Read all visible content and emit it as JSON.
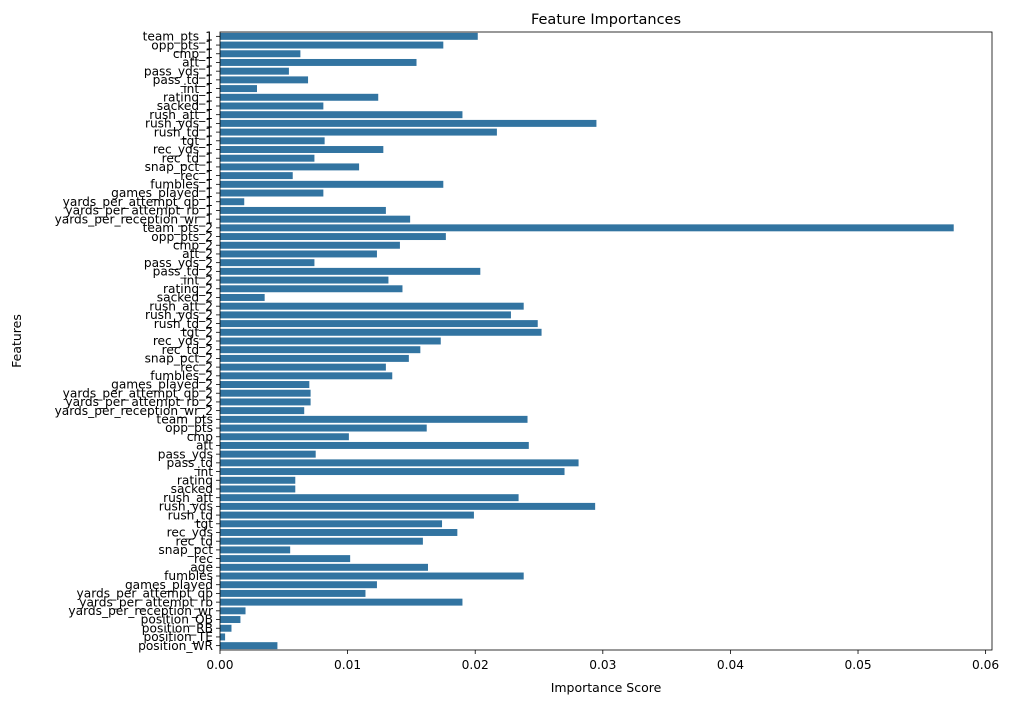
{
  "chart_data": {
    "type": "bar",
    "orientation": "horizontal",
    "title": "Feature Importances",
    "xlabel": "Importance Score",
    "ylabel": "Features",
    "xlim": [
      0,
      0.0605
    ],
    "xticks": [
      0,
      0.01,
      0.02,
      0.03,
      0.04,
      0.05,
      0.06
    ],
    "xtick_labels": [
      "0.00",
      "0.01",
      "0.02",
      "0.03",
      "0.04",
      "0.05",
      "0.06"
    ],
    "grid": false,
    "bar_color": "#3274a1",
    "categories": [
      "team_pts_1",
      "opp_pts_1",
      "cmp_1",
      "att_1",
      "pass_yds_1",
      "pass_td_1",
      "int_1",
      "rating_1",
      "sacked_1",
      "rush_att_1",
      "rush_yds_1",
      "rush_td_1",
      "tgt_1",
      "rec_yds_1",
      "rec_td_1",
      "snap_pct_1",
      "rec_1",
      "fumbles_1",
      "games_played_1",
      "yards_per_attempt_qb_1",
      "yards_per_attempt_rb_1",
      "yards_per_reception_wr_1",
      "team_pts_2",
      "opp_pts_2",
      "cmp_2",
      "att_2",
      "pass_yds_2",
      "pass_td_2",
      "int_2",
      "rating_2",
      "sacked_2",
      "rush_att_2",
      "rush_yds_2",
      "rush_td_2",
      "tgt_2",
      "rec_yds_2",
      "rec_td_2",
      "snap_pct_2",
      "rec_2",
      "fumbles_2",
      "games_played_2",
      "yards_per_attempt_qb_2",
      "yards_per_attempt_rb_2",
      "yards_per_reception_wr_2",
      "team_pts",
      "opp_pts",
      "cmp",
      "att",
      "pass_yds",
      "pass_td",
      "int",
      "rating",
      "sacked",
      "rush_att",
      "rush_yds",
      "rush_td",
      "tgt",
      "rec_yds",
      "rec_td",
      "snap_pct",
      "rec",
      "age",
      "fumbles",
      "games_played",
      "yards_per_attempt_qb",
      "yards_per_attempt_rb",
      "yards_per_reception_wr",
      "position_QB",
      "position_RB",
      "position_TE",
      "position_WR"
    ],
    "values": [
      0.0202,
      0.0175,
      0.0063,
      0.0154,
      0.0054,
      0.0069,
      0.0029,
      0.0124,
      0.0081,
      0.019,
      0.0295,
      0.0217,
      0.0082,
      0.0128,
      0.0074,
      0.0109,
      0.0057,
      0.0175,
      0.0081,
      0.0019,
      0.013,
      0.0149,
      0.0575,
      0.0177,
      0.0141,
      0.0123,
      0.0074,
      0.0204,
      0.0132,
      0.0143,
      0.0035,
      0.0238,
      0.0228,
      0.0249,
      0.0252,
      0.0173,
      0.0157,
      0.0148,
      0.013,
      0.0135,
      0.007,
      0.0071,
      0.0071,
      0.0066,
      0.0241,
      0.0162,
      0.0101,
      0.0242,
      0.0075,
      0.0281,
      0.027,
      0.0059,
      0.0059,
      0.0234,
      0.0294,
      0.0199,
      0.0174,
      0.0186,
      0.0159,
      0.0055,
      0.0102,
      0.0163,
      0.0238,
      0.0123,
      0.0114,
      0.019,
      0.002,
      0.0016,
      0.0009,
      0.0004,
      0.0045
    ]
  }
}
